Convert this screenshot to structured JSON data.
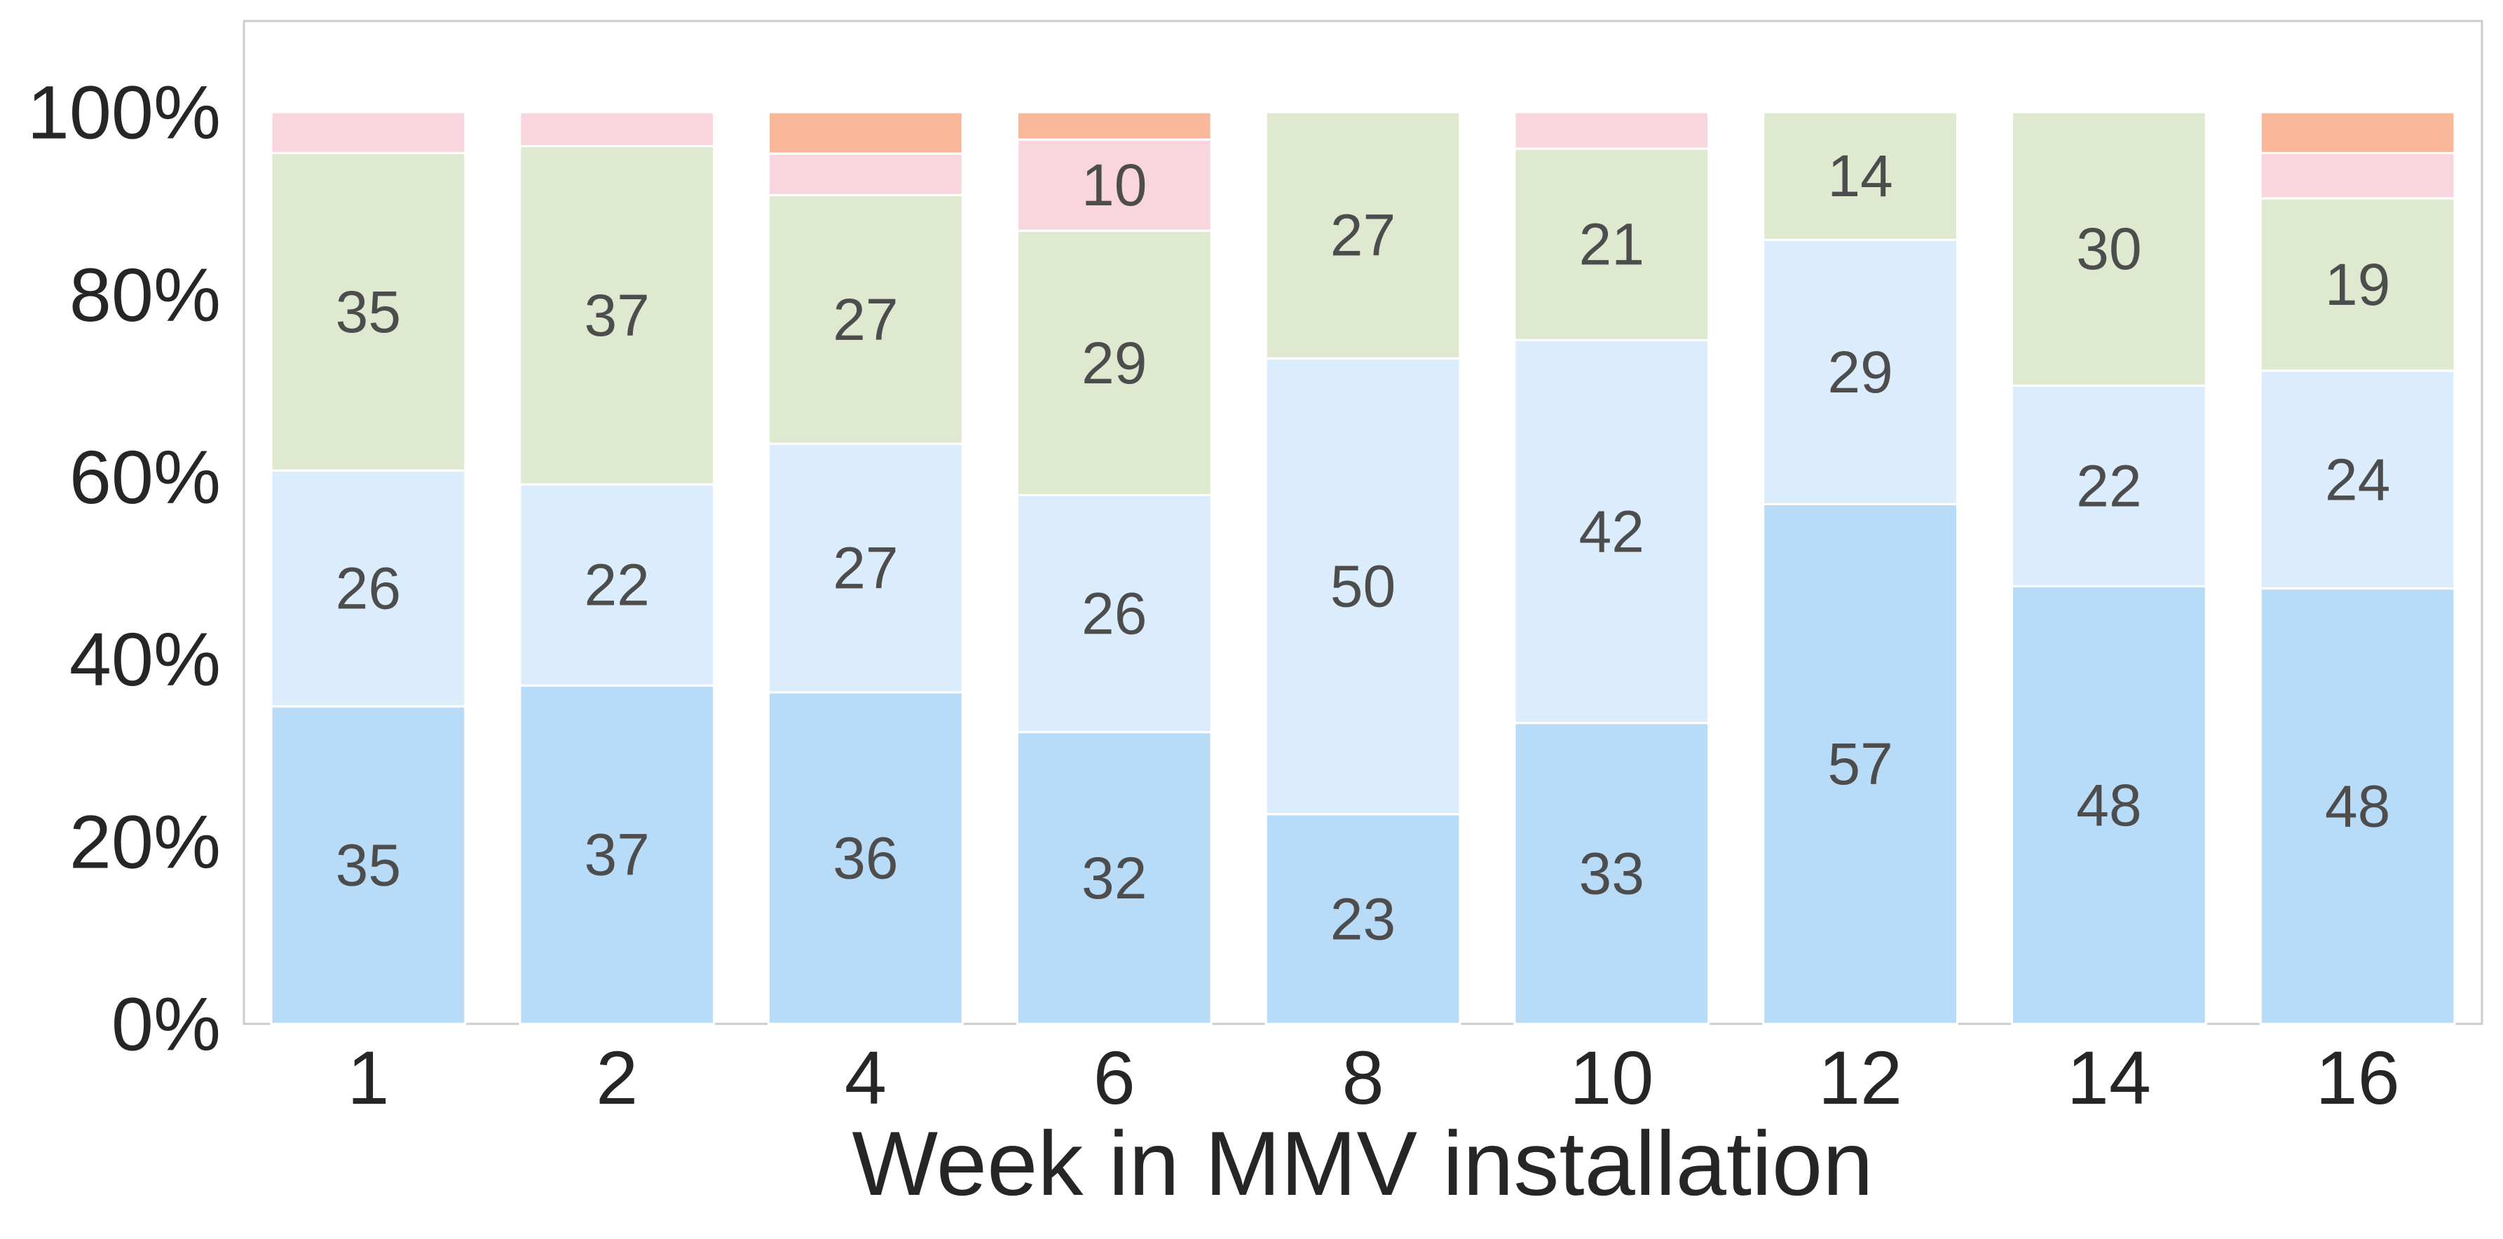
{
  "chart_data": {
    "type": "bar",
    "stacked": true,
    "normalized": true,
    "title": "",
    "xlabel": "Week in MMV installation",
    "ylabel": "",
    "categories": [
      "1",
      "2",
      "4",
      "6",
      "8",
      "10",
      "12",
      "14",
      "16"
    ],
    "y_ticks": [
      "0%",
      "20%",
      "40%",
      "60%",
      "80%",
      "100%"
    ],
    "ylim": [
      0,
      110
    ],
    "grid": false,
    "series": [
      {
        "color": "#b8dbf8",
        "values": [
          35,
          37,
          36,
          32,
          23,
          33,
          57,
          48,
          48
        ]
      },
      {
        "color": "#dbedfc",
        "values": [
          26,
          22,
          27,
          26,
          50,
          42,
          29,
          22,
          24
        ]
      },
      {
        "color": "#dfe9cf",
        "values": [
          35,
          37,
          27,
          29,
          27,
          21,
          14,
          30,
          19
        ]
      },
      {
        "color": "#f9d6dd",
        "values": [
          4.5,
          3.7,
          4.5,
          10,
          0,
          4,
          0,
          0,
          5
        ]
      },
      {
        "color": "#f9b89a",
        "values": [
          0,
          0,
          4.5,
          3,
          0,
          0,
          0,
          0,
          4.5
        ]
      }
    ],
    "data_labels": [
      [
        "35",
        "37",
        "36",
        "32",
        "23",
        "33",
        "57",
        "48",
        "48"
      ],
      [
        "26",
        "22",
        "27",
        "26",
        "50",
        "42",
        "29",
        "22",
        "24"
      ],
      [
        "35",
        "37",
        "27",
        "29",
        "27",
        "21",
        "14",
        "30",
        "19"
      ],
      [
        "",
        "",
        "",
        "10",
        "",
        "",
        "",
        "",
        ""
      ],
      [
        "",
        "",
        "",
        "",
        "",
        "",
        "",
        "",
        ""
      ]
    ]
  }
}
